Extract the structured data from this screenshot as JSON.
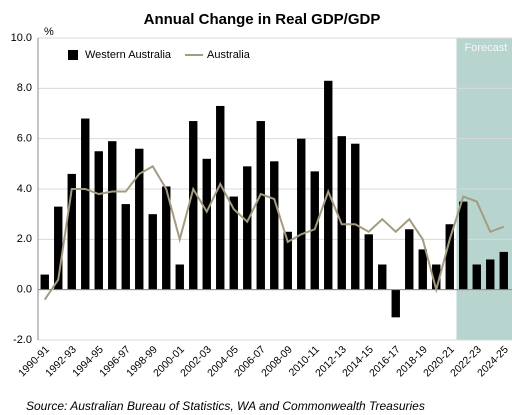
{
  "chart_data": {
    "type": "bar_line",
    "title": "Annual Change in Real GDP/GDP",
    "y_label": "%",
    "source": "Source: Australian Bureau of Statistics, WA and Commonwealth Treasuries",
    "categories": [
      "1990-91",
      null,
      "1992-93",
      null,
      "1994-95",
      null,
      "1996-97",
      null,
      "1998-99",
      null,
      "2000-01",
      null,
      "2002-03",
      null,
      "2004-05",
      null,
      "2006-07",
      null,
      "2008-09",
      null,
      "2010-11",
      null,
      "2012-13",
      null,
      "2014-15",
      null,
      "2016-17",
      null,
      "2018-19",
      null,
      "2020-21",
      null,
      "2022-23",
      null,
      "2024-25"
    ],
    "series": [
      {
        "name": "Western Australia",
        "type": "bar",
        "color": "#000000",
        "values": [
          0.6,
          3.3,
          4.6,
          6.8,
          5.5,
          5.9,
          3.4,
          5.6,
          3.0,
          4.1,
          1.0,
          6.7,
          5.2,
          7.3,
          3.7,
          4.9,
          6.7,
          5.1,
          2.3,
          6.0,
          4.7,
          8.3,
          6.1,
          5.8,
          2.2,
          1.0,
          -1.1,
          2.4,
          1.6,
          1.0,
          2.6,
          3.5,
          1.0,
          1.2,
          1.5
        ]
      },
      {
        "name": "Australia",
        "type": "line",
        "color": "#a39c80",
        "values": [
          -0.4,
          0.4,
          4.0,
          4.0,
          3.8,
          3.9,
          3.9,
          4.6,
          4.9,
          4.0,
          2.0,
          4.0,
          3.1,
          4.2,
          3.2,
          2.7,
          3.8,
          3.6,
          1.9,
          2.2,
          2.4,
          3.9,
          2.6,
          2.6,
          2.3,
          2.8,
          2.3,
          2.8,
          2.0,
          0.0,
          2.0,
          3.7,
          3.5,
          2.3,
          2.5
        ]
      }
    ],
    "forecast": {
      "label": "Forecast",
      "from_index": 31,
      "color": "#b7d5ce"
    },
    "ylim": [
      -2,
      10
    ],
    "yticks": [
      {
        "value": -2,
        "label": "-2.0"
      },
      {
        "value": 0,
        "label": "0.0"
      },
      {
        "value": 2,
        "label": "2.0"
      },
      {
        "value": 4,
        "label": "4.0"
      },
      {
        "value": 6,
        "label": "6.0"
      },
      {
        "value": 8,
        "label": "8.0"
      },
      {
        "value": 10,
        "label": "10.0"
      }
    ],
    "grid": true,
    "legend": "top-left"
  }
}
